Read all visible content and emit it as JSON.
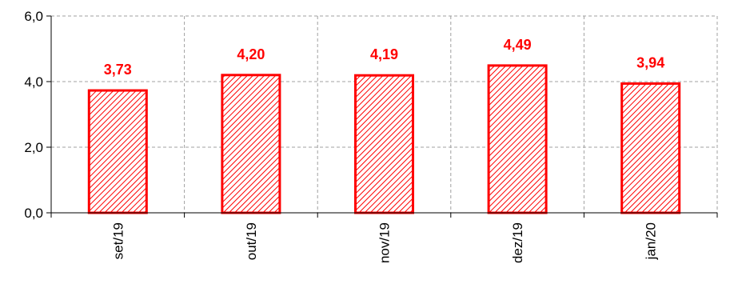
{
  "chart_data": {
    "type": "bar",
    "categories": [
      "set/19",
      "out/19",
      "nov/19",
      "dez/19",
      "jan/20"
    ],
    "values": [
      3.73,
      4.2,
      4.19,
      4.49,
      3.94
    ],
    "value_labels": [
      "3,73",
      "4,20",
      "4,19",
      "4,49",
      "3,94"
    ],
    "yticks": [
      0.0,
      2.0,
      4.0,
      6.0
    ],
    "ytick_labels": [
      "0,0",
      "2,0",
      "4,0",
      "6,0"
    ],
    "ylim": [
      0,
      6
    ],
    "grid": true,
    "title": "",
    "xlabel": "",
    "ylabel": "",
    "colors": {
      "bar_stroke": "#ff0000",
      "bar_hatch": "#ff0000",
      "data_label": "#ff0000",
      "grid": "#a0a0a0",
      "axis": "#000000"
    }
  }
}
